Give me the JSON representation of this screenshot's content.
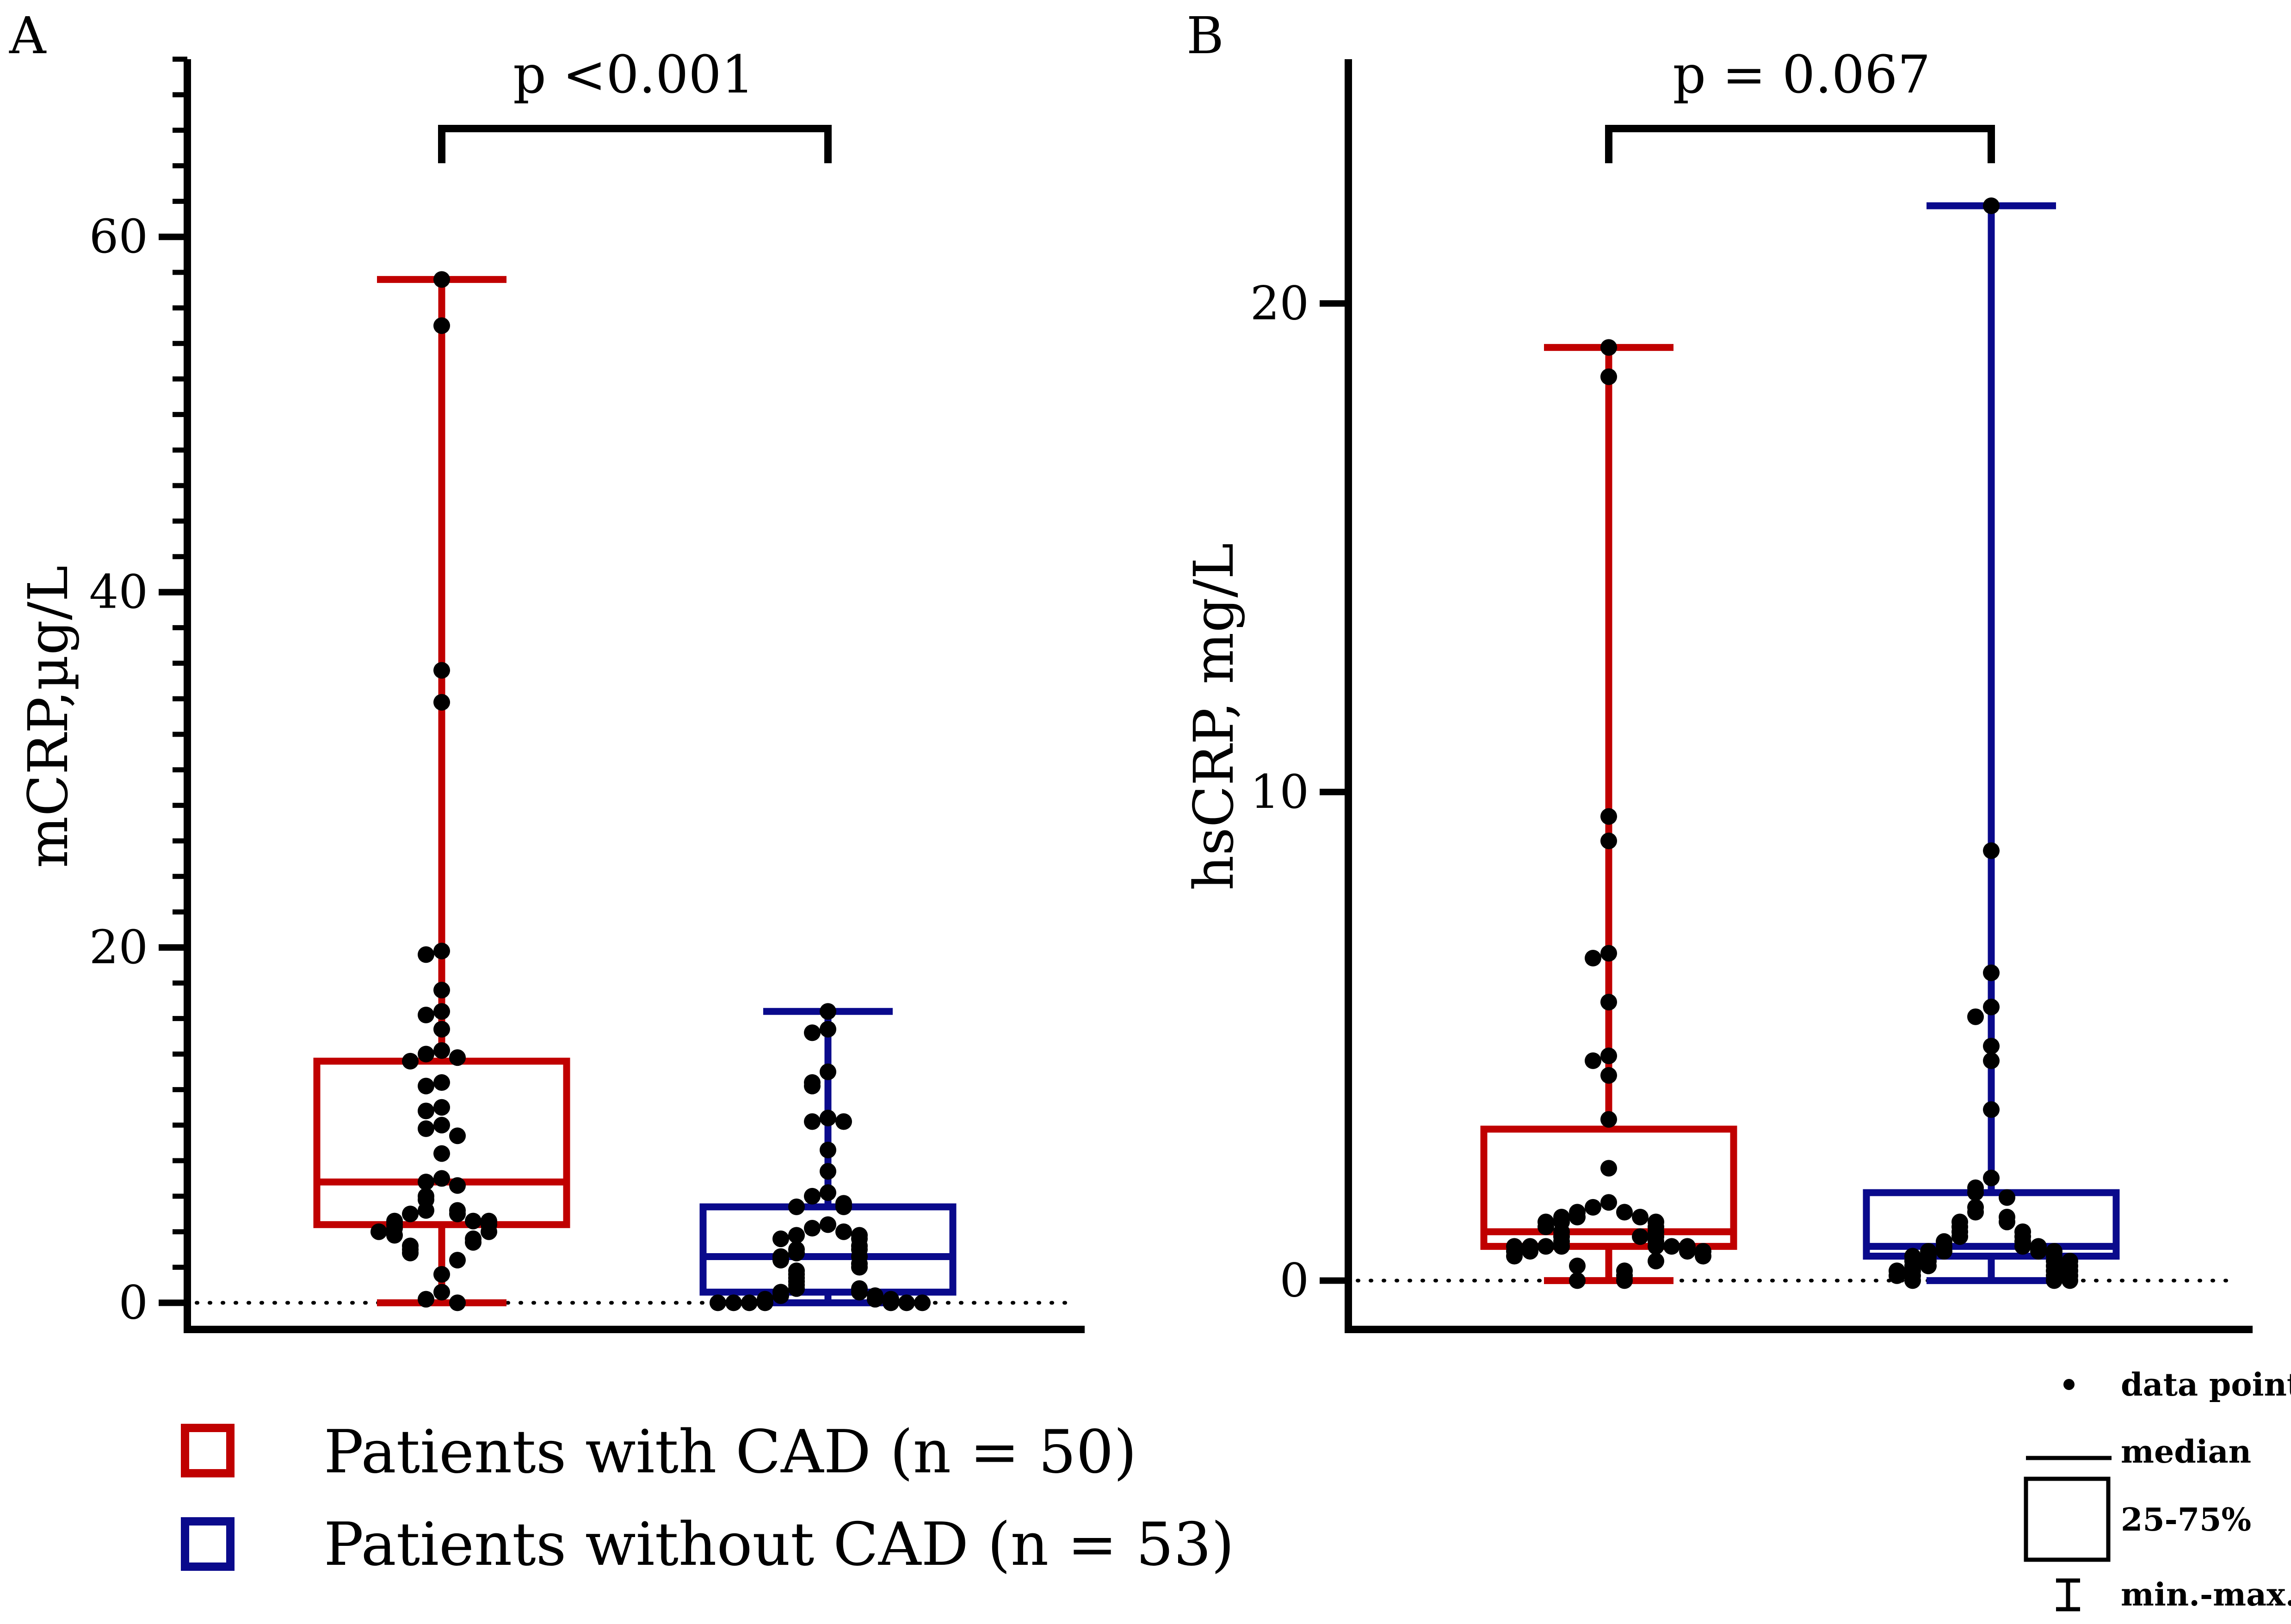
{
  "colors": {
    "cad": "#c00000",
    "no_cad": "#0a0a8c",
    "axis": "#000000",
    "points": "#000000"
  },
  "chart_data": [
    {
      "panel": "A",
      "type": "box",
      "ylabel": "mCRP,µg/L",
      "ylim": [
        -1.5,
        70
      ],
      "yticks": [
        0,
        20,
        40,
        60
      ],
      "minor_step": 2,
      "reference_line": 0,
      "comparison": "p <0.001",
      "series": [
        {
          "name": "Patients with CAD (n = 50)",
          "min": 0,
          "q1": 4.4,
          "median": 6.8,
          "q3": 13.6,
          "max": 57.6,
          "points": [
            57.6,
            55.0,
            35.6,
            33.8,
            19.8,
            19.6,
            17.6,
            16.4,
            16.2,
            15.4,
            14.2,
            14.0,
            13.8,
            13.6,
            12.4,
            12.2,
            11.0,
            10.8,
            10.0,
            9.8,
            9.4,
            8.4,
            7.0,
            6.8,
            6.6,
            6.0,
            5.8,
            5.2,
            5.2,
            5.0,
            5.0,
            4.6,
            4.6,
            4.6,
            4.4,
            4.4,
            4.2,
            4.0,
            4.0,
            3.8,
            3.6,
            3.4,
            3.2,
            3.0,
            2.8,
            2.4,
            1.6,
            0.6,
            0.2,
            0
          ]
        },
        {
          "name": "Patients without CAD (n = 53)",
          "min": 0,
          "q1": 0.6,
          "median": 2.6,
          "q3": 5.4,
          "max": 16.4,
          "points": [
            16.4,
            15.4,
            15.2,
            13.0,
            12.4,
            12.2,
            10.4,
            10.2,
            10.2,
            8.6,
            7.4,
            6.2,
            6.0,
            5.6,
            5.4,
            5.4,
            4.4,
            4.2,
            4.0,
            3.8,
            3.8,
            3.6,
            3.6,
            3.2,
            3.0,
            3.0,
            2.8,
            2.6,
            2.6,
            2.4,
            2.2,
            2.0,
            1.8,
            1.6,
            1.4,
            1.2,
            1.0,
            0.8,
            0.8,
            0.6,
            0.6,
            0.4,
            0.4,
            0.2,
            0.2,
            0.2,
            0,
            0,
            0,
            0,
            0,
            0,
            0
          ]
        }
      ]
    },
    {
      "panel": "B",
      "type": "box",
      "ylabel": "hsCRP, mg/L",
      "ylim": [
        -1,
        25
      ],
      "yticks": [
        0,
        10,
        20
      ],
      "minor_step": null,
      "reference_line": 0,
      "comparison": "p = 0.067",
      "series": [
        {
          "name": "Patients with CAD (n = 50)",
          "min": 0,
          "q1": 0.7,
          "median": 1.0,
          "q3": 3.1,
          "max": 19.1,
          "points": [
            19.1,
            18.5,
            9.5,
            9.0,
            6.7,
            6.6,
            5.7,
            4.6,
            4.5,
            4.2,
            3.3,
            2.3,
            1.6,
            1.5,
            1.4,
            1.4,
            1.3,
            1.3,
            1.3,
            1.2,
            1.2,
            1.2,
            1.1,
            1.1,
            1.0,
            1.0,
            0.9,
            0.9,
            0.9,
            0.8,
            0.8,
            0.7,
            0.7,
            0.7,
            0.7,
            0.7,
            0.7,
            0.7,
            0.6,
            0.6,
            0.6,
            0.6,
            0.5,
            0.5,
            0.4,
            0.3,
            0.2,
            0.1,
            0,
            0
          ]
        },
        {
          "name": "Patients without CAD (n = 53)",
          "min": 0,
          "q1": 0.5,
          "median": 0.7,
          "q3": 1.8,
          "max": 22.0,
          "points": [
            22.0,
            8.8,
            6.3,
            5.6,
            5.4,
            4.8,
            4.5,
            3.5,
            2.1,
            1.9,
            1.8,
            1.7,
            1.5,
            1.4,
            1.3,
            1.2,
            1.2,
            1.1,
            1.0,
            1.0,
            0.9,
            0.9,
            0.8,
            0.8,
            0.7,
            0.7,
            0.7,
            0.6,
            0.6,
            0.6,
            0.6,
            0.5,
            0.5,
            0.5,
            0.4,
            0.4,
            0.4,
            0.4,
            0.3,
            0.3,
            0.3,
            0.3,
            0.2,
            0.2,
            0.2,
            0.2,
            0.1,
            0.1,
            0.1,
            0.1,
            0,
            0,
            0
          ]
        }
      ]
    }
  ],
  "legend": [
    {
      "label": "Patients with CAD (n = 50)",
      "color": "#c00000"
    },
    {
      "label": "Patients without CAD (n = 53)",
      "color": "#0a0a8c"
    }
  ],
  "key": {
    "data_point": "data point",
    "median": "median",
    "box": "25-75%",
    "range": "min.-max."
  }
}
